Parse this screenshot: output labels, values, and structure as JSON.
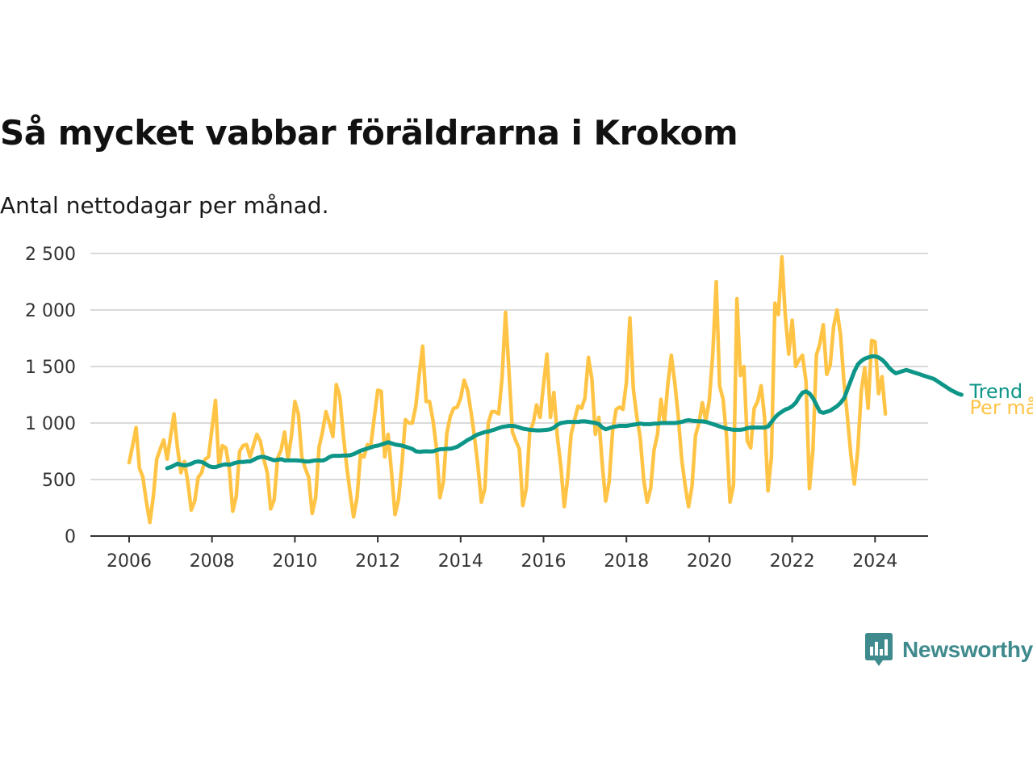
{
  "header": {
    "title": "Så mycket vabbar föräldrarna i Krokom",
    "subtitle": "Antal nettodagar per månad."
  },
  "logo": {
    "text": "Newsworthy",
    "icon": "newsworthy-chart-bubble-icon",
    "color": "#3f8a8d"
  },
  "chart_data": {
    "type": "line",
    "title": "Så mycket vabbar föräldrarna i Krokom",
    "subtitle": "Antal nettodagar per månad.",
    "xlabel": "",
    "ylabel": "",
    "xlim": [
      2006,
      2025.2
    ],
    "ylim": [
      0,
      2600
    ],
    "x_ticks": [
      2006,
      2008,
      2010,
      2012,
      2014,
      2016,
      2018,
      2020,
      2022,
      2024
    ],
    "x_tick_labels": [
      "2006",
      "2008",
      "2010",
      "2012",
      "2014",
      "2016",
      "2018",
      "2020",
      "2022",
      "2024"
    ],
    "y_ticks": [
      0,
      500,
      1000,
      1500,
      2000,
      2500
    ],
    "y_tick_labels": [
      "0",
      "500",
      "1 000",
      "1 500",
      "2 000",
      "2 500"
    ],
    "grid": true,
    "legend": "inline at line ends (right)",
    "series": [
      {
        "name": "Per månad",
        "color": "#ffc445",
        "x_start": 2006.0,
        "step": 0.0833333,
        "values": [
          650,
          800,
          960,
          600,
          520,
          300,
          120,
          350,
          680,
          770,
          850,
          680,
          880,
          1080,
          780,
          560,
          660,
          480,
          230,
          310,
          520,
          560,
          680,
          700,
          950,
          1200,
          620,
          800,
          780,
          600,
          220,
          350,
          750,
          800,
          810,
          700,
          800,
          900,
          840,
          680,
          560,
          240,
          320,
          690,
          760,
          920,
          680,
          880,
          1190,
          1080,
          700,
          600,
          520,
          200,
          340,
          790,
          920,
          1100,
          1000,
          880,
          1340,
          1240,
          900,
          620,
          380,
          170,
          340,
          720,
          700,
          810,
          800,
          1050,
          1290,
          1280,
          700,
          900,
          560,
          190,
          320,
          640,
          1030,
          1000,
          1000,
          1150,
          1420,
          1680,
          1190,
          1190,
          1020,
          780,
          340,
          480,
          910,
          1060,
          1130,
          1140,
          1220,
          1380,
          1290,
          1100,
          880,
          620,
          300,
          420,
          1000,
          1100,
          1100,
          1080,
          1400,
          1980,
          1450,
          920,
          840,
          770,
          270,
          420,
          920,
          1000,
          1160,
          1050,
          1340,
          1610,
          1050,
          1270,
          880,
          620,
          260,
          520,
          900,
          1030,
          1150,
          1130,
          1220,
          1580,
          1390,
          900,
          1050,
          640,
          310,
          480,
          930,
          1120,
          1140,
          1120,
          1360,
          1930,
          1300,
          1060,
          870,
          500,
          300,
          420,
          760,
          900,
          1210,
          1000,
          1340,
          1600,
          1360,
          1060,
          680,
          450,
          260,
          440,
          890,
          1000,
          1180,
          1020,
          1200,
          1610,
          2250,
          1330,
          1210,
          880,
          300,
          450,
          2100,
          1420,
          1500,
          840,
          780,
          1130,
          1190,
          1330,
          1050,
          400,
          700,
          2060,
          1960,
          2470,
          1960,
          1610,
          1910,
          1500,
          1560,
          1600,
          1370,
          420,
          760,
          1600,
          1700,
          1870,
          1430,
          1510,
          1850,
          2000,
          1780,
          1360,
          1050,
          720,
          460,
          760,
          1280,
          1490,
          1130,
          1730,
          1720,
          1260,
          1410,
          1080
        ]
      },
      {
        "name": "Trend",
        "color": "#0d9688",
        "x_start": 2006.92,
        "step": 0.0833333,
        "values": [
          600,
          610,
          625,
          640,
          630,
          625,
          630,
          640,
          655,
          660,
          655,
          640,
          620,
          610,
          610,
          620,
          630,
          635,
          630,
          640,
          650,
          655,
          655,
          660,
          660,
          675,
          690,
          700,
          700,
          690,
          680,
          670,
          675,
          680,
          670,
          670,
          670,
          670,
          668,
          665,
          660,
          660,
          665,
          670,
          670,
          668,
          680,
          700,
          710,
          710,
          710,
          712,
          712,
          715,
          725,
          740,
          755,
          765,
          775,
          785,
          795,
          800,
          810,
          820,
          830,
          820,
          810,
          805,
          800,
          790,
          780,
          770,
          750,
          745,
          748,
          750,
          748,
          750,
          760,
          768,
          770,
          772,
          772,
          780,
          790,
          810,
          830,
          850,
          865,
          885,
          900,
          910,
          920,
          925,
          935,
          945,
          955,
          965,
          970,
          975,
          975,
          970,
          960,
          950,
          945,
          940,
          938,
          935,
          935,
          938,
          940,
          945,
          960,
          985,
          1000,
          1005,
          1010,
          1010,
          1010,
          1010,
          1015,
          1015,
          1010,
          1005,
          1000,
          990,
          960,
          945,
          955,
          965,
          970,
          975,
          975,
          975,
          980,
          985,
          990,
          995,
          990,
          990,
          990,
          995,
          995,
          1000,
          1000,
          1000,
          1000,
          1000,
          1005,
          1010,
          1020,
          1025,
          1020,
          1018,
          1015,
          1015,
          1010,
          1000,
          990,
          980,
          970,
          960,
          950,
          945,
          940,
          940,
          940,
          945,
          955,
          960,
          960,
          960,
          960,
          960,
          970,
          1010,
          1050,
          1080,
          1100,
          1120,
          1130,
          1150,
          1180,
          1230,
          1270,
          1280,
          1260,
          1220,
          1160,
          1100,
          1090,
          1100,
          1110,
          1130,
          1150,
          1180,
          1220,
          1300,
          1380,
          1460,
          1520,
          1550,
          1570,
          1580,
          1590,
          1590,
          1580,
          1560,
          1530,
          1490,
          1460,
          1440,
          1450,
          1460,
          1470,
          1460,
          1450,
          1440,
          1430,
          1420,
          1410,
          1400,
          1390,
          1370,
          1350,
          1330,
          1310,
          1290,
          1275,
          1260,
          1250
        ]
      }
    ]
  }
}
